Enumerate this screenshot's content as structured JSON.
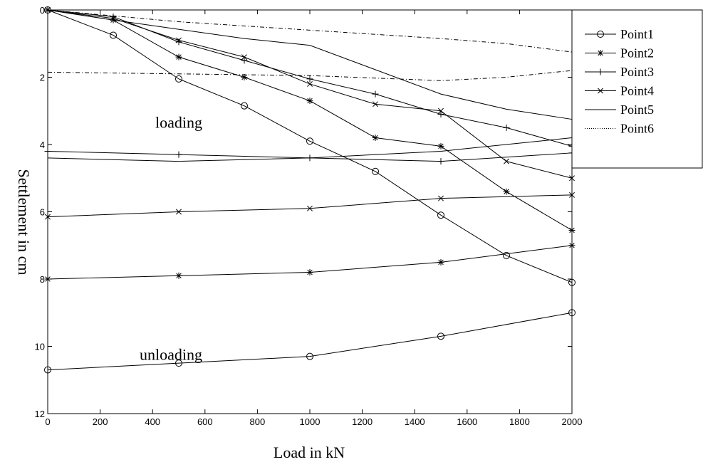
{
  "chart_data": {
    "type": "line",
    "xlabel": "Load in kN",
    "ylabel": "Settlement in cm",
    "xlim": [
      0,
      2000
    ],
    "ylim": [
      0,
      12
    ],
    "y_inverted": true,
    "x_ticks": [
      0,
      200,
      400,
      600,
      800,
      1000,
      1200,
      1400,
      1600,
      1800,
      2000
    ],
    "y_ticks": [
      0,
      2,
      4,
      6,
      8,
      10,
      12
    ],
    "grid": false,
    "legend_position": "top-right",
    "annotations": [
      {
        "id": "loading",
        "text": "loading",
        "x": 500,
        "y": 3.5
      },
      {
        "id": "unloading",
        "text": "unloading",
        "x": 470,
        "y": 10.4
      }
    ],
    "series": [
      {
        "name": "Point1",
        "marker": "circle",
        "dash": "solid",
        "loading": {
          "x": [
            0,
            250,
            500,
            750,
            1000,
            1250,
            1500,
            1750,
            2000
          ],
          "y": [
            0,
            0.75,
            2.05,
            2.85,
            3.9,
            4.8,
            6.1,
            7.3,
            8.1
          ]
        },
        "unloading": {
          "x": [
            0,
            500,
            1000,
            1500,
            2000
          ],
          "y": [
            10.7,
            10.5,
            10.3,
            9.7,
            9.0
          ]
        }
      },
      {
        "name": "Point2",
        "marker": "star",
        "dash": "solid",
        "loading": {
          "x": [
            0,
            250,
            500,
            750,
            1000,
            1250,
            1500,
            1750,
            2000
          ],
          "y": [
            0,
            0.3,
            1.4,
            2.0,
            2.7,
            3.8,
            4.05,
            5.4,
            6.55
          ]
        },
        "unloading": {
          "x": [
            0,
            500,
            1000,
            1500,
            2000
          ],
          "y": [
            8.0,
            7.9,
            7.8,
            7.5,
            7.0
          ]
        }
      },
      {
        "name": "Point3",
        "marker": "plus",
        "dash": "solid",
        "loading": {
          "x": [
            0,
            250,
            500,
            750,
            1000,
            1250,
            1500,
            1750,
            2000
          ],
          "y": [
            0,
            0.2,
            0.95,
            1.5,
            2.05,
            2.5,
            3.1,
            3.5,
            4.05
          ]
        },
        "unloading": {
          "x": [
            0,
            500,
            1000,
            1500,
            2000
          ],
          "y": [
            4.2,
            4.3,
            4.4,
            4.5,
            4.25
          ]
        }
      },
      {
        "name": "Point4",
        "marker": "x",
        "dash": "solid",
        "loading": {
          "x": [
            0,
            250,
            500,
            750,
            1000,
            1250,
            1500,
            1750,
            2000
          ],
          "y": [
            0,
            0.25,
            0.9,
            1.4,
            2.2,
            2.8,
            3.0,
            4.5,
            5.0
          ]
        },
        "unloading": {
          "x": [
            0,
            500,
            1000,
            1500,
            2000
          ],
          "y": [
            6.15,
            6.0,
            5.9,
            5.6,
            5.5
          ]
        }
      },
      {
        "name": "Point5",
        "marker": "none",
        "dash": "solid",
        "loading": {
          "x": [
            0,
            250,
            750,
            1000,
            1500,
            1750,
            2000
          ],
          "y": [
            0,
            0.3,
            0.85,
            1.05,
            2.5,
            2.95,
            3.25
          ]
        },
        "unloading": {
          "x": [
            0,
            500,
            1000,
            1500,
            2000
          ],
          "y": [
            4.4,
            4.5,
            4.4,
            4.2,
            3.8
          ]
        }
      },
      {
        "name": "Point6",
        "marker": "none",
        "dash": "dashdot",
        "loading": {
          "x": [
            0,
            500,
            1000,
            1500,
            1750,
            2000
          ],
          "y": [
            0,
            0.35,
            0.6,
            0.85,
            1.0,
            1.25
          ]
        },
        "unloading": {
          "x": [
            0,
            500,
            1000,
            1500,
            1750,
            2000
          ],
          "y": [
            1.85,
            1.9,
            1.95,
            2.1,
            2.0,
            1.8
          ]
        }
      }
    ]
  }
}
